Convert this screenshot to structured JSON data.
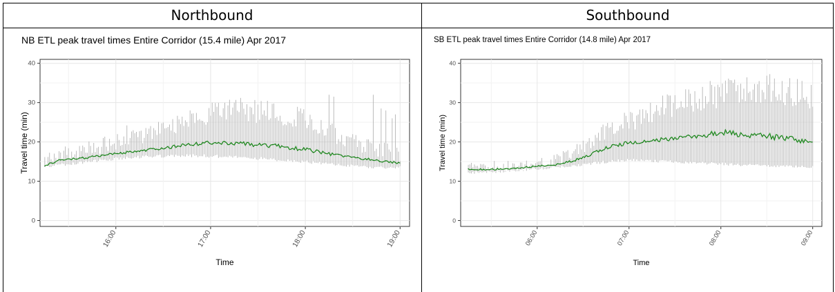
{
  "headers": {
    "left": "Northbound",
    "right": "Southbound"
  },
  "chart_data": [
    {
      "type": "line",
      "title": "NB ETL peak travel times Entire Corridor (15.4 mile) Apr 2017",
      "xlabel": "Time",
      "ylabel": "Travel time (min)",
      "x_range": [
        "15:12",
        "19:06"
      ],
      "ylim": [
        -1.5,
        41
      ],
      "yticks": [
        0,
        10,
        20,
        30,
        40
      ],
      "xticks": [
        "16:00",
        "17:00",
        "18:00",
        "19:00"
      ],
      "grid": true,
      "line_color": "#1a8a1a",
      "range_color": "#b3b3b3",
      "median_knots": [
        [
          "15:15",
          14.0
        ],
        [
          "15:25",
          15.4
        ],
        [
          "15:40",
          15.9
        ],
        [
          "16:00",
          17.0
        ],
        [
          "16:20",
          17.9
        ],
        [
          "16:40",
          19.0
        ],
        [
          "17:00",
          19.8
        ],
        [
          "17:20",
          19.5
        ],
        [
          "17:40",
          19.0
        ],
        [
          "18:00",
          18.1
        ],
        [
          "18:20",
          16.6
        ],
        [
          "18:40",
          15.6
        ],
        [
          "18:55",
          14.8
        ],
        [
          "19:00",
          14.6
        ]
      ],
      "max_knots": [
        [
          "15:15",
          15.5
        ],
        [
          "15:25",
          17.0
        ],
        [
          "15:40",
          18.0
        ],
        [
          "16:00",
          20.5
        ],
        [
          "16:20",
          22.5
        ],
        [
          "16:40",
          25.5
        ],
        [
          "17:00",
          28.0
        ],
        [
          "17:20",
          28.5
        ],
        [
          "17:40",
          27.5
        ],
        [
          "18:00",
          26.5
        ],
        [
          "18:20",
          22.0
        ],
        [
          "18:40",
          19.0
        ],
        [
          "18:55",
          17.5
        ],
        [
          "19:00",
          17.0
        ]
      ],
      "min_knots": [
        [
          "15:15",
          13.7
        ],
        [
          "15:25",
          14.2
        ],
        [
          "15:40",
          14.9
        ],
        [
          "16:00",
          15.8
        ],
        [
          "16:20",
          16.3
        ],
        [
          "16:40",
          16.6
        ],
        [
          "17:00",
          16.5
        ],
        [
          "17:20",
          16.2
        ],
        [
          "17:40",
          15.6
        ],
        [
          "18:00",
          15.0
        ],
        [
          "18:20",
          14.3
        ],
        [
          "18:40",
          13.6
        ],
        [
          "18:55",
          13.5
        ],
        [
          "19:00",
          13.6
        ]
      ],
      "spikes": [
        [
          "16:07",
          24.2
        ],
        [
          "17:15",
          30.0
        ],
        [
          "17:30",
          29.5
        ],
        [
          "18:15",
          32.0
        ],
        [
          "18:18",
          31.5
        ],
        [
          "18:43",
          32.0
        ],
        [
          "18:48",
          28.5
        ],
        [
          "18:51",
          28.0
        ],
        [
          "18:55",
          26.0
        ],
        [
          "18:57",
          27.0
        ]
      ]
    },
    {
      "type": "line",
      "title": "SB ETL peak travel times Entire Corridor (14.8 mile) Apr 2017",
      "xlabel": "Time",
      "ylabel": "Travel time (min)",
      "x_range": [
        "05:10",
        "09:06"
      ],
      "ylim": [
        -1.5,
        41
      ],
      "yticks": [
        0,
        10,
        20,
        30,
        40
      ],
      "xticks": [
        "06:00",
        "07:00",
        "08:00",
        "09:00"
      ],
      "grid": true,
      "line_color": "#1a8a1a",
      "range_color": "#b3b3b3",
      "median_knots": [
        [
          "05:15",
          13.0
        ],
        [
          "05:30",
          13.0
        ],
        [
          "05:45",
          13.3
        ],
        [
          "06:00",
          13.8
        ],
        [
          "06:15",
          14.3
        ],
        [
          "06:30",
          16.0
        ],
        [
          "06:45",
          18.5
        ],
        [
          "07:00",
          19.8
        ],
        [
          "07:15",
          20.5
        ],
        [
          "07:30",
          20.7
        ],
        [
          "07:45",
          21.5
        ],
        [
          "08:00",
          22.5
        ],
        [
          "08:15",
          21.8
        ],
        [
          "08:30",
          21.5
        ],
        [
          "08:45",
          20.8
        ],
        [
          "09:00",
          20.0
        ]
      ],
      "max_knots": [
        [
          "05:15",
          13.8
        ],
        [
          "05:30",
          13.8
        ],
        [
          "05:45",
          14.0
        ],
        [
          "06:00",
          14.6
        ],
        [
          "06:15",
          15.5
        ],
        [
          "06:30",
          19.5
        ],
        [
          "06:45",
          23.0
        ],
        [
          "07:00",
          25.5
        ],
        [
          "07:15",
          28.0
        ],
        [
          "07:30",
          30.0
        ],
        [
          "07:45",
          31.5
        ],
        [
          "08:00",
          32.5
        ],
        [
          "08:15",
          33.5
        ],
        [
          "08:30",
          34.0
        ],
        [
          "08:45",
          33.0
        ],
        [
          "09:00",
          32.0
        ]
      ],
      "min_knots": [
        [
          "05:15",
          12.2
        ],
        [
          "05:30",
          12.4
        ],
        [
          "05:45",
          12.8
        ],
        [
          "06:00",
          13.2
        ],
        [
          "06:15",
          13.6
        ],
        [
          "06:30",
          14.3
        ],
        [
          "06:45",
          15.0
        ],
        [
          "07:00",
          15.5
        ],
        [
          "07:15",
          15.2
        ],
        [
          "07:30",
          15.0
        ],
        [
          "07:45",
          14.8
        ],
        [
          "08:00",
          14.5
        ],
        [
          "08:15",
          14.2
        ],
        [
          "08:30",
          14.0
        ],
        [
          "08:45",
          13.8
        ],
        [
          "09:00",
          13.6
        ]
      ],
      "spikes": [
        [
          "07:53",
          35.5
        ],
        [
          "08:08",
          35.0
        ],
        [
          "08:25",
          35.5
        ],
        [
          "08:40",
          35.5
        ],
        [
          "08:50",
          36.0
        ]
      ]
    }
  ]
}
